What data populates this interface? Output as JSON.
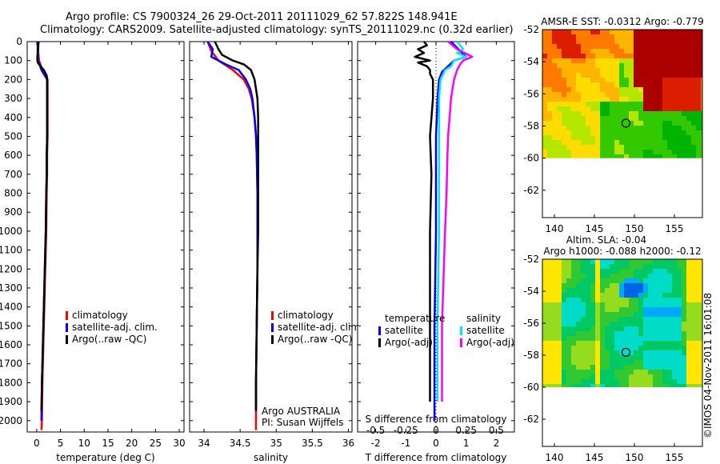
{
  "header": {
    "line1": "Argo profile: CS 7900324_26 29-Oct-2011 20111029_62 57.822S 148.941E",
    "line2": "Climatology: CARS2009. Satellite-adjusted climatology: synTS_20111029.nc (0.32d earlier)"
  },
  "colors": {
    "climatology": "#ff0000",
    "satellite": "#0000ff",
    "argo": "#000000",
    "sal_satellite": "#00e5ff",
    "sal_argo": "#ff00ff"
  },
  "chart_data": [
    {
      "type": "line",
      "id": "temperature",
      "xlabel": "temperature (deg C)",
      "xlim": [
        -2,
        31
      ],
      "xticks": [
        0,
        5,
        10,
        15,
        20,
        25,
        30
      ],
      "ylim": [
        0,
        2060
      ],
      "yticks": [
        0,
        100,
        200,
        300,
        400,
        500,
        600,
        700,
        800,
        900,
        1000,
        1100,
        1200,
        1300,
        1400,
        1500,
        1600,
        1700,
        1800,
        1900,
        2000
      ],
      "y_reversed": true,
      "legend": [
        "climatology",
        "satellite-adj. clim.",
        "Argo(..raw -QC)"
      ],
      "series": [
        {
          "name": "climatology",
          "color": "#ff0000",
          "depth": [
            0,
            50,
            100,
            150,
            200,
            300,
            400,
            500,
            600,
            700,
            800,
            1000,
            1200,
            1400,
            1600,
            1800,
            2000,
            2050
          ],
          "values": [
            0.3,
            0.3,
            0.5,
            1.2,
            2.3,
            2.3,
            2.3,
            2.3,
            2.2,
            2.2,
            2.1,
            2.0,
            1.8,
            1.6,
            1.4,
            1.2,
            1.1,
            1.0
          ]
        },
        {
          "name": "satellite-adj. clim.",
          "color": "#0000ff",
          "depth": [
            0,
            50,
            100,
            150,
            200,
            300,
            400,
            500,
            600,
            700,
            800,
            1000,
            1200,
            1400,
            1600,
            1800,
            2000
          ],
          "values": [
            0.2,
            0.2,
            0.3,
            1.0,
            2.2,
            2.2,
            2.2,
            2.2,
            2.1,
            2.1,
            2.0,
            1.9,
            1.7,
            1.5,
            1.3,
            1.1,
            1.0
          ]
        },
        {
          "name": "Argo(..raw -QC)",
          "color": "#000000",
          "depth": [
            0,
            30,
            60,
            90,
            110,
            130,
            150,
            180,
            200,
            300,
            400,
            500,
            600,
            700,
            800,
            1000,
            1200,
            1400,
            1600,
            1800,
            1950
          ],
          "values": [
            0.4,
            0.3,
            0.2,
            0.1,
            0.2,
            0.8,
            1.5,
            2.1,
            2.2,
            2.2,
            2.2,
            2.2,
            2.1,
            2.1,
            2.0,
            1.9,
            1.7,
            1.5,
            1.3,
            1.1,
            1.0
          ]
        }
      ]
    },
    {
      "type": "line",
      "id": "salinity",
      "xlabel": "salinity",
      "xlim": [
        33.8,
        36.05
      ],
      "xticks": [
        34,
        34.5,
        35,
        35.5,
        36
      ],
      "ylim": [
        0,
        2060
      ],
      "yticks": [
        0,
        100,
        200,
        300,
        400,
        500,
        600,
        700,
        800,
        900,
        1000,
        1100,
        1200,
        1300,
        1400,
        1500,
        1600,
        1700,
        1800,
        1900,
        2000
      ],
      "y_reversed": true,
      "legend": [
        "climatology",
        "satellite-adj. clim.",
        "Argo(..raw -QC)"
      ],
      "annotation": [
        "Argo AUSTRALIA",
        "PI: Susan Wijffels"
      ],
      "series": [
        {
          "name": "climatology",
          "color": "#ff0000",
          "depth": [
            0,
            50,
            100,
            150,
            200,
            250,
            300,
            400,
            500,
            600,
            800,
            1000,
            1200,
            1500,
            1800,
            2050
          ],
          "values": [
            34.05,
            34.1,
            34.2,
            34.4,
            34.55,
            34.62,
            34.66,
            34.7,
            34.72,
            34.73,
            34.74,
            34.74,
            34.74,
            34.73,
            34.72,
            34.72
          ]
        },
        {
          "name": "satellite-adj. clim.",
          "color": "#0000ff",
          "depth": [
            0,
            40,
            80,
            120,
            150,
            200,
            250,
            300,
            400,
            500,
            600,
            800,
            1000,
            1200,
            1500,
            1800,
            1950
          ],
          "values": [
            34.05,
            34.12,
            34.1,
            34.3,
            34.48,
            34.58,
            34.64,
            34.67,
            34.7,
            34.72,
            34.73,
            34.74,
            34.74,
            34.74,
            34.73,
            34.72,
            34.72
          ]
        },
        {
          "name": "Argo(..raw -QC)",
          "color": "#000000",
          "depth": [
            0,
            40,
            70,
            100,
            120,
            150,
            200,
            250,
            300,
            400,
            500,
            600,
            800,
            1000,
            1200,
            1500,
            1800,
            1950
          ],
          "values": [
            34.15,
            34.2,
            34.25,
            34.4,
            34.55,
            34.65,
            34.7,
            34.72,
            34.74,
            34.75,
            34.75,
            34.75,
            34.75,
            34.75,
            34.74,
            34.73,
            34.72,
            34.72
          ]
        }
      ]
    },
    {
      "type": "line",
      "id": "difference",
      "xlabel": "T difference from climatology",
      "xlabel_top": "S difference from climatology",
      "xlim": [
        -2.6,
        2.6
      ],
      "xticks": [
        -2,
        -1,
        0,
        1,
        2
      ],
      "xticks_top": [
        "-0.5",
        "-0.25",
        "0",
        "0.25",
        "0.5"
      ],
      "ylim": [
        0,
        2060
      ],
      "y_reversed": true,
      "legend_groups": [
        {
          "title": "temperature",
          "items": [
            "satellite",
            "Argo(-adj)"
          ]
        },
        {
          "title": "salinity",
          "items": [
            "satellite",
            "Argo(-adj)"
          ]
        }
      ],
      "series": [
        {
          "name": "temperature satellite",
          "color": "#0000ff",
          "depth": [
            0,
            50,
            80,
            100,
            130,
            160,
            200,
            300,
            500,
            1000,
            1500,
            2000
          ],
          "values": [
            0.5,
            0.8,
            1.0,
            0.6,
            0.4,
            0.2,
            0.1,
            0.05,
            0.0,
            0.0,
            -0.05,
            -0.05
          ]
        },
        {
          "name": "temperature Argo(-adj)",
          "color": "#000000",
          "depth": [
            0,
            20,
            40,
            60,
            80,
            100,
            110,
            130,
            150,
            170,
            200,
            300,
            500,
            700,
            1000,
            1300,
            1600,
            1900
          ],
          "values": [
            -0.4,
            -0.3,
            -0.6,
            -0.4,
            -0.7,
            -0.2,
            -0.6,
            -0.3,
            -0.2,
            -0.2,
            -0.1,
            -0.1,
            -0.2,
            -0.15,
            -0.2,
            -0.2,
            -0.2,
            -0.2
          ]
        },
        {
          "name": "salinity satellite",
          "color": "#00e5ff",
          "depth": [
            0,
            40,
            60,
            80,
            100,
            130,
            150,
            200,
            300,
            500,
            1000,
            1500,
            1900
          ],
          "values": [
            0.7,
            0.9,
            0.7,
            1.0,
            0.6,
            0.5,
            0.3,
            0.15,
            0.1,
            0.1,
            0.1,
            0.05,
            0.05
          ]
        },
        {
          "name": "salinity Argo(-adj)",
          "color": "#ff00ff",
          "depth": [
            0,
            40,
            80,
            100,
            120,
            150,
            200,
            250,
            300,
            400,
            500,
            600,
            800,
            1000,
            1500,
            1900
          ],
          "values": [
            0.4,
            0.7,
            1.2,
            0.9,
            0.8,
            0.7,
            0.6,
            0.55,
            0.5,
            0.45,
            0.4,
            0.38,
            0.35,
            0.3,
            0.2,
            0.2
          ]
        }
      ]
    }
  ],
  "maps": [
    {
      "id": "sst-map",
      "title_lines": [
        "AMSR-E SST: -0.0312 Argo: -0.779"
      ],
      "xticks": [
        140,
        145,
        150,
        155
      ],
      "yticks": [
        -52,
        -54,
        -56,
        -58,
        -60,
        -62
      ],
      "lon_range": [
        138.5,
        158.5
      ],
      "lat_range": [
        -52,
        -63.7
      ],
      "data_lat_min": -60,
      "argo_marker": {
        "lon": 148.941,
        "lat": -57.822
      },
      "palette": [
        "#00b400",
        "#33c800",
        "#b4e600",
        "#ffdc00",
        "#ffb400",
        "#ff7800",
        "#dc1e00",
        "#aa0000"
      ]
    },
    {
      "id": "sla-map",
      "title_lines": [
        "Altim. SLA: -0.04",
        "Argo h1000: -0.088 h2000: -0.12"
      ],
      "xticks": [
        140,
        145,
        150,
        155
      ],
      "yticks": [
        -52,
        -54,
        -56,
        -58,
        -60,
        -62
      ],
      "lon_range": [
        138.5,
        158.5
      ],
      "lat_range": [
        -52,
        -63.7
      ],
      "data_lat_min": -60,
      "argo_marker": {
        "lon": 148.941,
        "lat": -57.822
      },
      "palette": [
        "#0000c8",
        "#0064e6",
        "#00aaff",
        "#00dcc8",
        "#00c864",
        "#32c832",
        "#96dc1e",
        "#ffe600"
      ]
    }
  ],
  "footer": {
    "credit": "©IMOS 04-Nov-2011 16:01:08"
  }
}
